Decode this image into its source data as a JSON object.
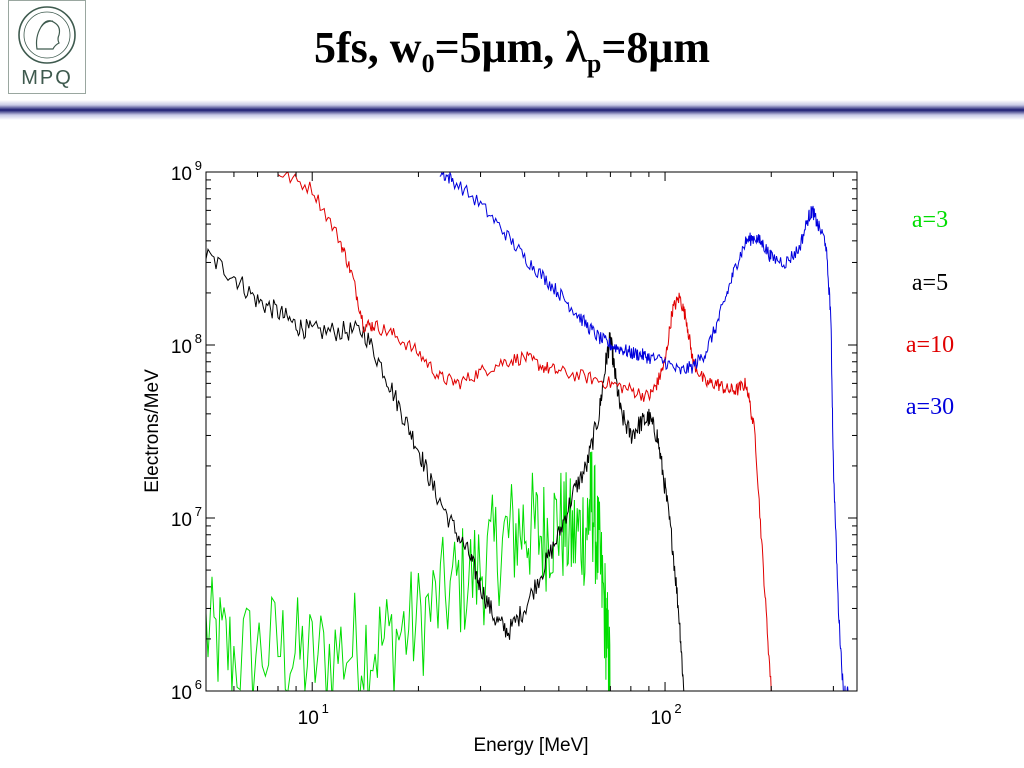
{
  "logo": {
    "text": "MPQ"
  },
  "title": {
    "main": "5fs, w",
    "sub1": "0",
    "mid": "=5μm, λ",
    "sub2": "p",
    "end": "=8μm"
  },
  "colors": {
    "green": "#00dd00",
    "black": "#000000",
    "red": "#e00000",
    "blue": "#0000dd",
    "header_bar": "#1a1a70"
  },
  "chart_data": {
    "type": "line",
    "title": "",
    "xlabel": "Energy [MeV]",
    "ylabel": "Electrons/MeV",
    "xscale": "log",
    "yscale": "log",
    "xlim": [
      5,
      350
    ],
    "ylim": [
      1000000,
      1000000000
    ],
    "xticks": [
      10,
      100
    ],
    "xtick_labels": [
      [
        "10",
        "1"
      ],
      [
        "10",
        "2"
      ]
    ],
    "yticks": [
      1000000,
      10000000,
      100000000,
      1000000000
    ],
    "ytick_labels": [
      [
        "10",
        "6"
      ],
      [
        "10",
        "7"
      ],
      [
        "10",
        "8"
      ],
      [
        "10",
        "9"
      ]
    ],
    "grid": false,
    "legend_position": "right",
    "series": [
      {
        "name": "a=3",
        "color": "#00dd00",
        "x": [
          5,
          6,
          8,
          10,
          13,
          16,
          20,
          25,
          30,
          35,
          40,
          45,
          50,
          55,
          60,
          62,
          65,
          68,
          70
        ],
        "y": [
          2200000,
          1600000,
          1800000,
          1500000,
          1800000,
          1900000,
          2500000,
          4000000,
          5000000,
          7500000,
          9000000,
          8000000,
          9500000,
          7500000,
          9000000,
          13000000,
          6000000,
          2500000,
          1000000
        ]
      },
      {
        "name": "a=5",
        "color": "#000000",
        "x": [
          5,
          6,
          7,
          8,
          9,
          10,
          12,
          14,
          16,
          18,
          20,
          22,
          25,
          28,
          30,
          33,
          36,
          40,
          45,
          50,
          55,
          60,
          65,
          68,
          70,
          72,
          75,
          80,
          85,
          90,
          95,
          100,
          105,
          110,
          113
        ],
        "y": [
          330000000,
          250000000,
          180000000,
          155000000,
          130000000,
          120000000,
          120000000,
          120000000,
          70000000,
          40000000,
          25000000,
          15000000,
          9000000,
          6000000,
          4000000,
          2600000,
          2200000,
          3000000,
          5000000,
          8000000,
          14000000,
          20000000,
          40000000,
          80000000,
          110000000,
          70000000,
          40000000,
          30000000,
          35000000,
          38000000,
          30000000,
          15000000,
          7000000,
          2500000,
          1000000
        ]
      },
      {
        "name": "a=10",
        "color": "#e00000",
        "x": [
          8,
          10,
          12,
          13,
          14,
          15,
          17,
          20,
          23,
          26,
          30,
          35,
          40,
          45,
          50,
          60,
          70,
          80,
          90,
          95,
          100,
          105,
          110,
          115,
          120,
          130,
          140,
          150,
          160,
          170,
          180,
          190,
          200
        ],
        "y": [
          1000000000,
          800000000,
          400000000,
          250000000,
          130000000,
          130000000,
          115000000,
          90000000,
          65000000,
          60000000,
          70000000,
          80000000,
          85000000,
          75000000,
          70000000,
          65000000,
          60000000,
          55000000,
          50000000,
          60000000,
          80000000,
          160000000,
          190000000,
          140000000,
          80000000,
          60000000,
          60000000,
          55000000,
          55000000,
          60000000,
          30000000,
          5000000,
          1000000
        ]
      },
      {
        "name": "a=30",
        "color": "#0000dd",
        "x": [
          23,
          25,
          30,
          35,
          40,
          45,
          50,
          55,
          60,
          65,
          70,
          75,
          80,
          85,
          90,
          100,
          110,
          120,
          130,
          140,
          150,
          160,
          170,
          180,
          190,
          200,
          220,
          240,
          255,
          262,
          270,
          285,
          295,
          300,
          310,
          320,
          330
        ],
        "y": [
          1000000000,
          900000000,
          650000000,
          450000000,
          320000000,
          250000000,
          200000000,
          160000000,
          130000000,
          110000000,
          100000000,
          95000000,
          90000000,
          88000000,
          85000000,
          80000000,
          70000000,
          75000000,
          90000000,
          130000000,
          200000000,
          300000000,
          400000000,
          420000000,
          380000000,
          320000000,
          300000000,
          360000000,
          550000000,
          600000000,
          500000000,
          400000000,
          150000000,
          20000000,
          3000000,
          1000000,
          1000000
        ]
      }
    ]
  }
}
